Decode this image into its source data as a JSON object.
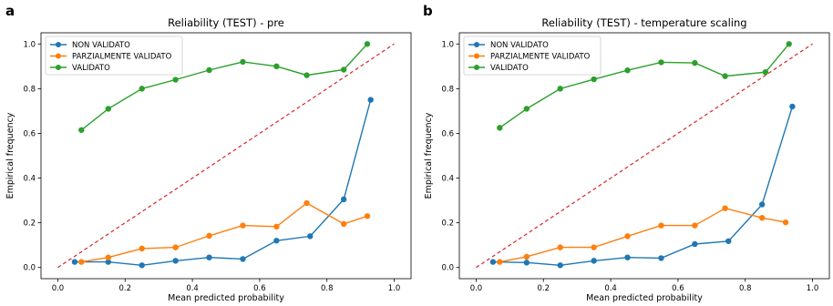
{
  "chart_data": [
    {
      "panel": "a",
      "type": "line",
      "title": "Reliability (TEST) - pre",
      "xlabel": "Mean predicted probability",
      "ylabel": "Empirical frequency",
      "xlim": [
        -0.05,
        1.05
      ],
      "ylim": [
        -0.05,
        1.05
      ],
      "xticks": [
        "0.0",
        "0.2",
        "0.4",
        "0.6",
        "0.8",
        "1.0"
      ],
      "yticks": [
        "0.0",
        "0.2",
        "0.4",
        "0.6",
        "0.8",
        "1.0"
      ],
      "legend_position": "top-left",
      "reference_line": {
        "style": "dashed",
        "color": "#d62728",
        "from": [
          0,
          0
        ],
        "to": [
          1,
          1
        ]
      },
      "series": [
        {
          "name": "NON VALIDATO",
          "color": "#1f77b4",
          "x": [
            0.05,
            0.15,
            0.25,
            0.35,
            0.45,
            0.55,
            0.65,
            0.75,
            0.85,
            0.93
          ],
          "y": [
            0.025,
            0.025,
            0.01,
            0.03,
            0.045,
            0.038,
            0.12,
            0.14,
            0.305,
            0.75
          ]
        },
        {
          "name": "PARZIALMENTE VALIDATO",
          "color": "#ff7f0e",
          "x": [
            0.07,
            0.15,
            0.25,
            0.35,
            0.45,
            0.55,
            0.65,
            0.74,
            0.85,
            0.92
          ],
          "y": [
            0.025,
            0.045,
            0.085,
            0.09,
            0.142,
            0.188,
            0.183,
            0.288,
            0.195,
            0.23
          ]
        },
        {
          "name": "VALIDATO",
          "color": "#2ca02c",
          "x": [
            0.07,
            0.15,
            0.25,
            0.35,
            0.45,
            0.55,
            0.65,
            0.74,
            0.85,
            0.92
          ],
          "y": [
            0.615,
            0.71,
            0.8,
            0.84,
            0.883,
            0.92,
            0.9,
            0.86,
            0.885,
            1.0
          ]
        }
      ]
    },
    {
      "panel": "b",
      "type": "line",
      "title": "Reliability (TEST) - temperature scaling",
      "xlabel": "Mean predicted probability",
      "ylabel": "Empirical frequency",
      "xlim": [
        -0.05,
        1.05
      ],
      "ylim": [
        -0.05,
        1.05
      ],
      "xticks": [
        "0.0",
        "0.2",
        "0.4",
        "0.6",
        "0.8",
        "1.0"
      ],
      "yticks": [
        "0.0",
        "0.2",
        "0.4",
        "0.6",
        "0.8",
        "1.0"
      ],
      "legend_position": "top-left",
      "reference_line": {
        "style": "dashed",
        "color": "#d62728",
        "from": [
          0,
          0
        ],
        "to": [
          1,
          1
        ]
      },
      "series": [
        {
          "name": "NON VALIDATO",
          "color": "#1f77b4",
          "x": [
            0.05,
            0.15,
            0.25,
            0.35,
            0.45,
            0.55,
            0.65,
            0.75,
            0.85,
            0.94
          ],
          "y": [
            0.025,
            0.022,
            0.01,
            0.03,
            0.045,
            0.042,
            0.105,
            0.118,
            0.282,
            0.72
          ]
        },
        {
          "name": "PARZIALMENTE VALIDATO",
          "color": "#ff7f0e",
          "x": [
            0.07,
            0.15,
            0.25,
            0.35,
            0.45,
            0.55,
            0.65,
            0.74,
            0.85,
            0.92
          ],
          "y": [
            0.025,
            0.048,
            0.09,
            0.09,
            0.14,
            0.188,
            0.188,
            0.265,
            0.222,
            0.202
          ]
        },
        {
          "name": "VALIDATO",
          "color": "#2ca02c",
          "x": [
            0.07,
            0.15,
            0.25,
            0.35,
            0.45,
            0.55,
            0.65,
            0.74,
            0.86,
            0.93
          ],
          "y": [
            0.625,
            0.71,
            0.8,
            0.842,
            0.882,
            0.918,
            0.915,
            0.856,
            0.874,
            1.0
          ]
        }
      ]
    }
  ]
}
